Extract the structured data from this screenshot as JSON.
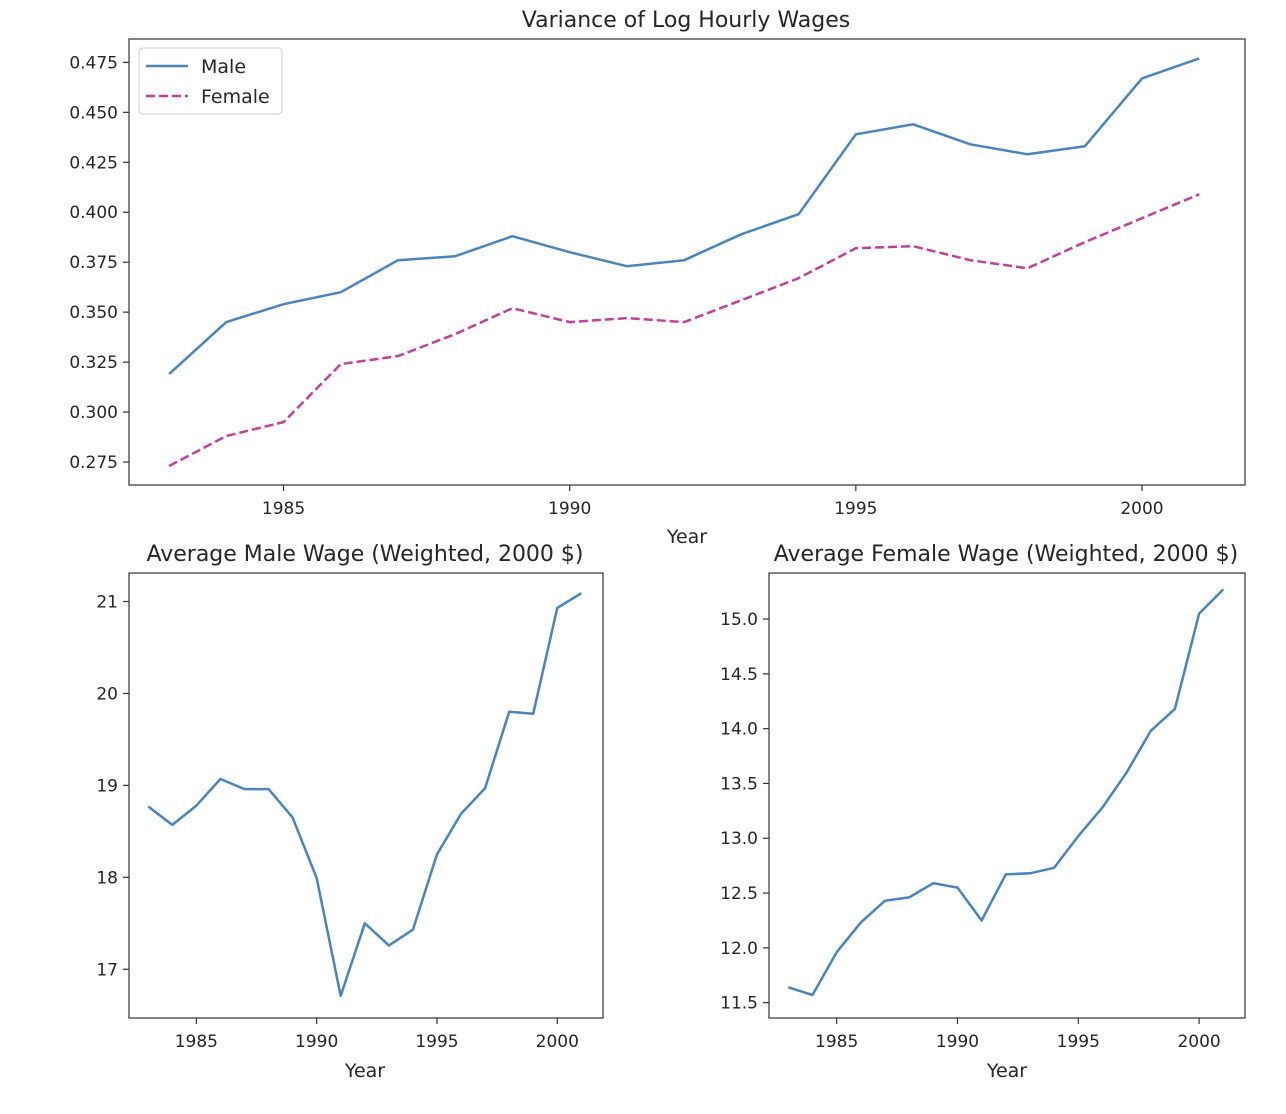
{
  "colors": {
    "male": "#4a84bd",
    "female": "#c0409a",
    "frame": "#333333",
    "background": "#ffffff"
  },
  "chart_data": [
    {
      "id": "variance",
      "type": "line",
      "title": "Variance of Log Hourly Wages",
      "xlabel": "Year",
      "ylabel": "",
      "xlim": [
        1982.3,
        2001.8
      ],
      "ylim": [
        0.2635,
        0.4867
      ],
      "xticks": [
        1985,
        1990,
        1995,
        2000
      ],
      "yticks": [
        0.275,
        0.3,
        0.325,
        0.35,
        0.375,
        0.4,
        0.425,
        0.45,
        0.475
      ],
      "ytick_decimals": 3,
      "grid": false,
      "legend": "upper left",
      "x": [
        1983,
        1984,
        1985,
        1986,
        1987,
        1988,
        1989,
        1990,
        1991,
        1992,
        1993,
        1994,
        1995,
        1996,
        1997,
        1998,
        1999,
        2000,
        2001
      ],
      "series": [
        {
          "name": "Male",
          "style": "solid",
          "color": "#4a84bd",
          "values": [
            0.319,
            0.345,
            0.354,
            0.36,
            0.376,
            0.378,
            0.388,
            0.38,
            0.373,
            0.376,
            0.389,
            0.399,
            0.439,
            0.444,
            0.434,
            0.429,
            0.433,
            0.467,
            0.477
          ]
        },
        {
          "name": "Female",
          "style": "dashed",
          "color": "#c0409a",
          "values": [
            0.273,
            0.288,
            0.295,
            0.324,
            0.328,
            0.339,
            0.352,
            0.345,
            0.347,
            0.345,
            0.356,
            0.367,
            0.382,
            0.383,
            0.376,
            0.372,
            0.385,
            0.397,
            0.409
          ]
        }
      ]
    },
    {
      "id": "male_wage",
      "type": "line",
      "title": "Average Male Wage (Weighted, 2000 $)",
      "xlabel": "Year",
      "ylabel": "",
      "xlim": [
        1982.2,
        2001.9
      ],
      "ylim": [
        16.47,
        21.31
      ],
      "xticks": [
        1985,
        1990,
        1995,
        2000
      ],
      "yticks": [
        17,
        18,
        19,
        20,
        21
      ],
      "ytick_decimals": 0,
      "grid": false,
      "x": [
        1983,
        1984,
        1985,
        1986,
        1987,
        1988,
        1989,
        1990,
        1991,
        1992,
        1993,
        1994,
        1995,
        1996,
        1997,
        1998,
        1999,
        2000,
        2001
      ],
      "series": [
        {
          "style": "solid",
          "color": "#4a84bd",
          "values": [
            18.77,
            18.57,
            18.78,
            19.07,
            18.96,
            18.96,
            18.65,
            17.99,
            16.71,
            17.5,
            17.26,
            17.43,
            18.25,
            18.69,
            18.97,
            19.8,
            19.78,
            20.93,
            21.09
          ]
        }
      ]
    },
    {
      "id": "female_wage",
      "type": "line",
      "title": "Average Female Wage (Weighted, 2000 $)",
      "xlabel": "Year",
      "ylabel": "",
      "xlim": [
        1982.2,
        2001.9
      ],
      "ylim": [
        11.36,
        15.42
      ],
      "xticks": [
        1985,
        1990,
        1995,
        2000
      ],
      "yticks": [
        11.5,
        12.0,
        12.5,
        13.0,
        13.5,
        14.0,
        14.5,
        15.0
      ],
      "ytick_decimals": 1,
      "grid": false,
      "x": [
        1983,
        1984,
        1985,
        1986,
        1987,
        1988,
        1989,
        1990,
        1991,
        1992,
        1993,
        1994,
        1995,
        1996,
        1997,
        1998,
        1999,
        2000,
        2001
      ],
      "series": [
        {
          "style": "solid",
          "color": "#4a84bd",
          "values": [
            11.64,
            11.57,
            11.96,
            12.23,
            12.43,
            12.46,
            12.59,
            12.55,
            12.25,
            12.67,
            12.68,
            12.73,
            13.02,
            13.28,
            13.6,
            13.98,
            14.18,
            15.05,
            15.27
          ]
        }
      ]
    }
  ]
}
